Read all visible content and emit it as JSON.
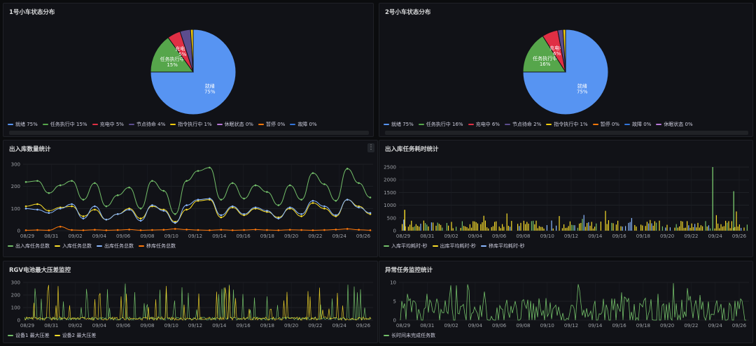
{
  "panels": {
    "pie1": {
      "title": "1号小车状态分布"
    },
    "pie2": {
      "title": "2号小车状态分布"
    },
    "inout": {
      "title": "出入库数量统计",
      "menu": "⋮"
    },
    "timecost": {
      "title": "出入库任务耗时统计"
    },
    "rgv": {
      "title": "RGV电池最大压差监控"
    },
    "abnormal": {
      "title": "异常任务监控统计"
    }
  },
  "chart_data": [
    {
      "id": "pie1",
      "type": "pie",
      "slices": [
        {
          "label": "就绪",
          "value": 75,
          "color": "#5794f2",
          "show": true,
          "text": "就绪\n75%"
        },
        {
          "label": "任务执行中",
          "value": 15,
          "color": "#56a64b",
          "show": true,
          "text": "任务执行中\n15%"
        },
        {
          "label": "充电中",
          "value": 5,
          "color": "#e02f44",
          "show": true,
          "text": "充电中\n5%"
        },
        {
          "label": "节点待命",
          "value": 4,
          "color": "#5c4d8e",
          "show": false
        },
        {
          "label": "指令执行中",
          "value": 1,
          "color": "#f2cc0c",
          "show": false
        },
        {
          "label": "休眠状态",
          "value": 0,
          "color": "#b877d9",
          "show": false
        },
        {
          "label": "暂停",
          "value": 0,
          "color": "#ff780a",
          "show": false
        },
        {
          "label": "故障",
          "value": 0,
          "color": "#3274d9",
          "show": false
        }
      ],
      "legend": [
        "就绪  75%",
        "任务执行中  15%",
        "充电中  5%",
        "节点待命  4%",
        "指令执行中  1%",
        "休眠状态  0%",
        "暂停  0%",
        "故障  0%"
      ]
    },
    {
      "id": "pie2",
      "type": "pie",
      "slices": [
        {
          "label": "就绪",
          "value": 75,
          "color": "#5794f2",
          "show": true,
          "text": "就绪\n75%"
        },
        {
          "label": "任务执行中",
          "value": 16,
          "color": "#56a64b",
          "show": true,
          "text": "任务执行中\n16%"
        },
        {
          "label": "充电中",
          "value": 6,
          "color": "#e02f44",
          "show": true,
          "text": "充电中\n6%"
        },
        {
          "label": "节点待命",
          "value": 2,
          "color": "#5c4d8e",
          "show": false
        },
        {
          "label": "指令执行中",
          "value": 1,
          "color": "#f2cc0c",
          "show": false
        },
        {
          "label": "暂停",
          "value": 0,
          "color": "#ff780a",
          "show": false
        },
        {
          "label": "故障",
          "value": 0,
          "color": "#3274d9",
          "show": false
        },
        {
          "label": "休眠状态",
          "value": 0,
          "color": "#b877d9",
          "show": false
        }
      ],
      "legend": [
        "就绪  75%",
        "任务执行中  16%",
        "充电中  6%",
        "节点待命  2%",
        "指令执行中  1%",
        "暂停  0%",
        "故障  0%",
        "休眠状态  0%"
      ]
    },
    {
      "id": "inout",
      "type": "line",
      "ylim": [
        0,
        300
      ],
      "yticks": [
        0,
        100,
        200,
        300
      ],
      "xticks": [
        "08/29",
        "08/31",
        "09/02",
        "09/04",
        "09/06",
        "09/08",
        "09/10",
        "09/12",
        "09/14",
        "09/16",
        "09/18",
        "09/20",
        "09/22",
        "09/24",
        "09/26"
      ],
      "series": [
        {
          "name": "出入库任务总数",
          "color": "#73bf69",
          "values": [
            220,
            225,
            170,
            205,
            225,
            140,
            215,
            110,
            160,
            195,
            100,
            225,
            180,
            75,
            225,
            270,
            285,
            140,
            215,
            145,
            205,
            175,
            115,
            205,
            140,
            260,
            210,
            135,
            280,
            215,
            150
          ]
        },
        {
          "name": "入库任务总数",
          "color": "#fade2a",
          "values": [
            110,
            120,
            90,
            105,
            110,
            65,
            95,
            50,
            75,
            100,
            55,
            110,
            95,
            40,
            95,
            135,
            140,
            60,
            105,
            70,
            100,
            85,
            60,
            100,
            65,
            125,
            100,
            65,
            140,
            110,
            75
          ]
        },
        {
          "name": "出库任务总数",
          "color": "#8ab8ff",
          "values": [
            100,
            95,
            80,
            100,
            120,
            55,
            110,
            50,
            75,
            95,
            45,
            115,
            90,
            35,
            115,
            140,
            145,
            70,
            110,
            75,
            105,
            90,
            55,
            105,
            75,
            135,
            110,
            70,
            140,
            105,
            80
          ]
        },
        {
          "name": "移库任务总数",
          "color": "#ff780a",
          "values": [
            2,
            3,
            2,
            18,
            3,
            2,
            4,
            2,
            3,
            5,
            2,
            3,
            4,
            8,
            5,
            3,
            2,
            4,
            2,
            3,
            5,
            3,
            2,
            4,
            3,
            2,
            3,
            5,
            8,
            4,
            2
          ]
        }
      ]
    },
    {
      "id": "timecost",
      "type": "bar",
      "ylim": [
        0,
        2500
      ],
      "yticks": [
        0,
        500,
        1000,
        1500,
        2000,
        2500
      ],
      "xticks": [
        "08/29",
        "08/31",
        "09/02",
        "09/04",
        "09/06",
        "09/08",
        "09/10",
        "09/12",
        "09/14",
        "09/16",
        "09/18",
        "09/20",
        "09/22",
        "09/24",
        "09/26"
      ],
      "series": [
        {
          "name": "入库平均耗时-秒",
          "color": "#73bf69"
        },
        {
          "name": "出库平均耗时-秒",
          "color": "#fade2a"
        },
        {
          "name": "移库平均耗时-秒",
          "color": "#8ab8ff"
        }
      ],
      "spikes": [
        {
          "x": 0.895,
          "value": 2500,
          "color": "#73bf69"
        },
        {
          "x": 0.955,
          "value": 1550,
          "color": "#73bf69"
        },
        {
          "x": 0.015,
          "value": 820,
          "color": "#fade2a"
        }
      ]
    },
    {
      "id": "rgv",
      "type": "line",
      "ylim": [
        0,
        300
      ],
      "yticks": [
        0,
        100,
        200,
        300
      ],
      "xticks": [
        "08/29",
        "08/31",
        "09/02",
        "09/04",
        "09/06",
        "09/08",
        "09/10",
        "09/12",
        "09/14",
        "09/16",
        "09/18",
        "09/20",
        "09/22",
        "09/24",
        "09/26"
      ],
      "series": [
        {
          "name": "设备1 最大压差",
          "color": "#73bf69"
        },
        {
          "name": "设备2 最大压差",
          "color": "#fade2a"
        }
      ]
    },
    {
      "id": "abnormal",
      "type": "line",
      "ylim": [
        0,
        10
      ],
      "yticks": [
        0,
        5,
        10
      ],
      "xticks": [
        "08/29",
        "08/31",
        "09/02",
        "09/04",
        "09/06",
        "09/08",
        "09/10",
        "09/12",
        "09/14",
        "09/16",
        "09/18",
        "09/20",
        "09/22",
        "09/24",
        "09/26"
      ],
      "series": [
        {
          "name": "长时间未完成任务数",
          "color": "#73bf69"
        }
      ]
    }
  ]
}
